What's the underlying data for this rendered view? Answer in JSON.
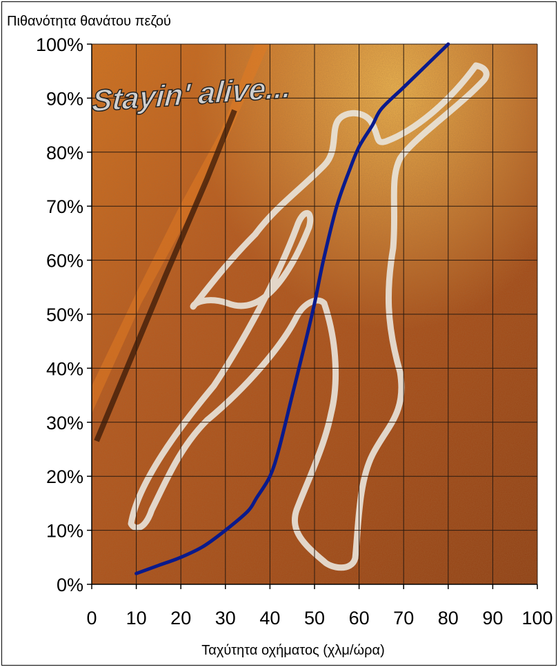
{
  "chart_data": {
    "type": "line",
    "ylabel": "Πιθανότητα θανάτου πεζού",
    "xlabel": "Ταχύτητα οχήματος (χλμ/ώρα)",
    "annotation": "Stayin' alive...",
    "xlim": [
      0,
      100
    ],
    "ylim": [
      0,
      100
    ],
    "x_ticks": [
      0,
      10,
      20,
      30,
      40,
      50,
      60,
      70,
      80,
      90,
      100
    ],
    "x_tick_labels": [
      "0",
      "10",
      "20",
      "30",
      "40",
      "50",
      "60",
      "70",
      "80",
      "90",
      "100"
    ],
    "y_ticks": [
      0,
      10,
      20,
      30,
      40,
      50,
      60,
      70,
      80,
      90,
      100
    ],
    "y_tick_labels": [
      "0%",
      "10%",
      "20%",
      "30%",
      "40%",
      "50%",
      "60%",
      "70%",
      "80%",
      "90%",
      "100%"
    ],
    "grid": true,
    "series": [
      {
        "color": "#0a1a8c",
        "x": [
          10,
          15,
          20,
          25,
          30,
          35,
          37,
          40,
          42,
          45,
          48,
          50,
          52,
          55,
          58,
          60,
          63,
          65,
          70,
          75,
          80
        ],
        "y": [
          2,
          3.5,
          5,
          7,
          10,
          13.5,
          16,
          20,
          25,
          35,
          45,
          52,
          60,
          70,
          77,
          81,
          85,
          88,
          92,
          96,
          100
        ]
      }
    ],
    "background": "chalk body outline on asphalt photo"
  }
}
